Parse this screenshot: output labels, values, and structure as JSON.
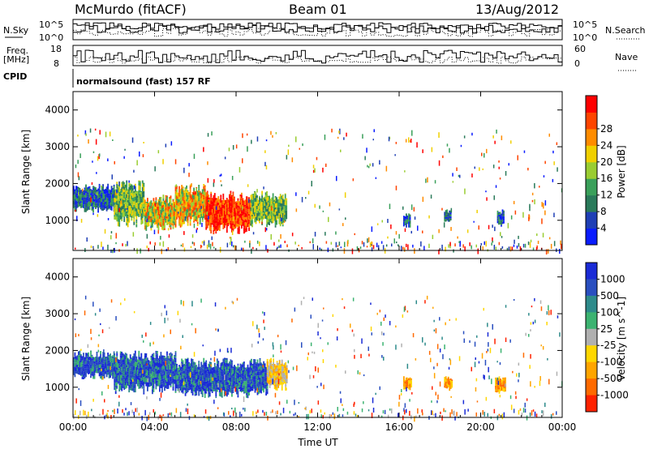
{
  "header": {
    "station": "McMurdo (fitACF)",
    "beam": "Beam 01",
    "date": "13/Aug/2012"
  },
  "left_labels": {
    "nsky": "N.Sky",
    "freq_line1": "Freq.",
    "freq_line2": "[MHz]",
    "cpid": "CPID"
  },
  "right_labels": {
    "nsearch": "N.Search",
    "nave": "Nave"
  },
  "cpid_text": "normalsound (fast) 157 RF",
  "noise_panel": {
    "left_ticks": [
      "10^5",
      "10^0"
    ],
    "right_ticks": [
      "10^5",
      "10^0"
    ]
  },
  "freq_panel": {
    "left_ticks": [
      "18",
      "8"
    ],
    "right_ticks": [
      "60",
      "0"
    ]
  },
  "power_colorbar": {
    "label": "Power [dB]",
    "ticks": [
      "4",
      "8",
      "12",
      "16",
      "20",
      "24",
      "28"
    ],
    "colors": [
      "#0a1cff",
      "#1f3fb5",
      "#2a7a5a",
      "#3aa05a",
      "#9acd32",
      "#f0d000",
      "#ff8c00",
      "#ff4500",
      "#ff0000"
    ]
  },
  "velocity_colorbar": {
    "label": "Velocity [m s^-1]",
    "ticks": [
      "1000",
      "500",
      "100",
      "25",
      "-25",
      "-100",
      "-500",
      "-1000"
    ],
    "colors": [
      "#1a2bd6",
      "#2a4fc0",
      "#2e8b8b",
      "#3cb371",
      "#b0b0b0",
      "#ffd700",
      "#ffa500",
      "#ff6a00",
      "#ff2200"
    ]
  },
  "chart_data": [
    {
      "type": "heatmap",
      "title": "Beam 01",
      "quantity": "Power",
      "xlabel": "",
      "ylabel": "Slant Range [km]",
      "xlim": [
        0,
        24
      ],
      "ylim": [
        180,
        4500
      ],
      "x_ticks": [
        "00:00",
        "04:00",
        "08:00",
        "12:00",
        "16:00",
        "20:00",
        "00:00"
      ],
      "y_ticks": [
        "1000",
        "2000",
        "3000",
        "4000"
      ],
      "colorbar_label": "Power [dB]",
      "colorbar_ticks": [
        "4",
        "8",
        "12",
        "16",
        "20",
        "24",
        "28"
      ],
      "regions": [
        {
          "t_start": 0.0,
          "t_end": 2.0,
          "r_low": 1200,
          "r_high": 2000,
          "level": "low"
        },
        {
          "t_start": 2.0,
          "t_end": 3.5,
          "r_low": 800,
          "r_high": 2100,
          "level": "medium"
        },
        {
          "t_start": 3.5,
          "t_end": 5.0,
          "r_low": 700,
          "r_high": 1700,
          "level": "high"
        },
        {
          "t_start": 5.0,
          "t_end": 6.5,
          "r_low": 800,
          "r_high": 2000,
          "level": "high"
        },
        {
          "t_start": 6.5,
          "t_end": 8.7,
          "r_low": 600,
          "r_high": 1800,
          "level": "very_high"
        },
        {
          "t_start": 8.7,
          "t_end": 10.5,
          "r_low": 800,
          "r_high": 1800,
          "level": "medium"
        },
        {
          "t_start": 16.2,
          "t_end": 16.5,
          "r_low": 800,
          "r_high": 1200,
          "level": "low"
        },
        {
          "t_start": 18.2,
          "t_end": 18.5,
          "r_low": 900,
          "r_high": 1300,
          "level": "low"
        },
        {
          "t_start": 20.8,
          "t_end": 21.1,
          "r_low": 800,
          "r_high": 1300,
          "level": "low"
        }
      ]
    },
    {
      "type": "heatmap",
      "title": "",
      "quantity": "Velocity",
      "xlabel": "Time UT",
      "ylabel": "Slant Range [km]",
      "xlim": [
        0,
        24
      ],
      "ylim": [
        180,
        4500
      ],
      "x_ticks": [
        "00:00",
        "04:00",
        "08:00",
        "12:00",
        "16:00",
        "20:00",
        "00:00"
      ],
      "y_ticks": [
        "1000",
        "2000",
        "3000",
        "4000"
      ],
      "colorbar_label": "Velocity [m s^-1]",
      "colorbar_ticks": [
        "1000",
        "500",
        "100",
        "25",
        "-25",
        "-100",
        "-500",
        "-1000"
      ],
      "regions": [
        {
          "t_start": 0.0,
          "t_end": 2.0,
          "r_low": 1200,
          "r_high": 2000,
          "level": "toward_strong"
        },
        {
          "t_start": 2.0,
          "t_end": 5.0,
          "r_low": 800,
          "r_high": 2000,
          "level": "toward_strong"
        },
        {
          "t_start": 5.0,
          "t_end": 9.5,
          "r_low": 700,
          "r_high": 1800,
          "level": "toward_strong"
        },
        {
          "t_start": 9.5,
          "t_end": 10.5,
          "r_low": 900,
          "r_high": 1800,
          "level": "away_weak"
        },
        {
          "t_start": 16.2,
          "t_end": 16.6,
          "r_low": 900,
          "r_high": 1300,
          "level": "away_medium"
        },
        {
          "t_start": 18.2,
          "t_end": 18.6,
          "r_low": 900,
          "r_high": 1300,
          "level": "away_medium"
        },
        {
          "t_start": 20.7,
          "t_end": 21.2,
          "r_low": 800,
          "r_high": 1300,
          "level": "away_medium"
        }
      ]
    }
  ]
}
